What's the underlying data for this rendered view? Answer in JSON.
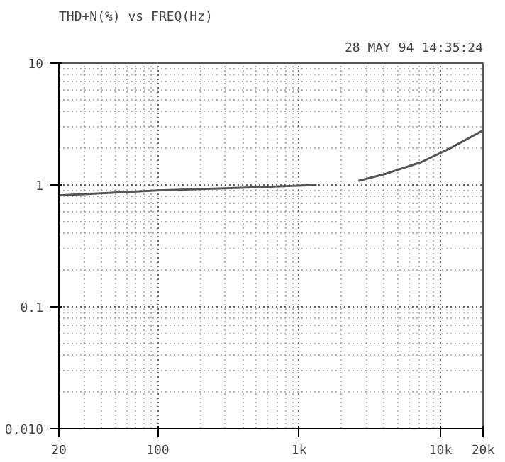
{
  "chart_data": {
    "type": "line",
    "title": "THD+N(%) vs FREQ(Hz)",
    "annotations": [
      "28 MAY 94 14:35:24"
    ],
    "x": [
      20,
      100,
      425,
      1330,
      1870,
      2630,
      4150,
      7330,
      11600,
      20000
    ],
    "series": [
      {
        "color": "#555555",
        "values": [
          0.82,
          0.9,
          0.95,
          1.0,
          null,
          1.08,
          1.24,
          1.54,
          1.99,
          2.8
        ]
      }
    ],
    "log": "xy",
    "xlim": [
      20,
      20000
    ],
    "ylim": [
      0.01,
      10
    ],
    "xticks": [
      20,
      100,
      {
        "value": 1000,
        "label": "1k"
      },
      {
        "value": 10000,
        "label": "10k"
      },
      {
        "value": 20000,
        "label": "20k"
      }
    ],
    "yticks": [
      {
        "value": 0.01,
        "label": "0.010"
      },
      0.1,
      1,
      10
    ],
    "grid": true,
    "line_style": "solid",
    "marker": "none"
  }
}
